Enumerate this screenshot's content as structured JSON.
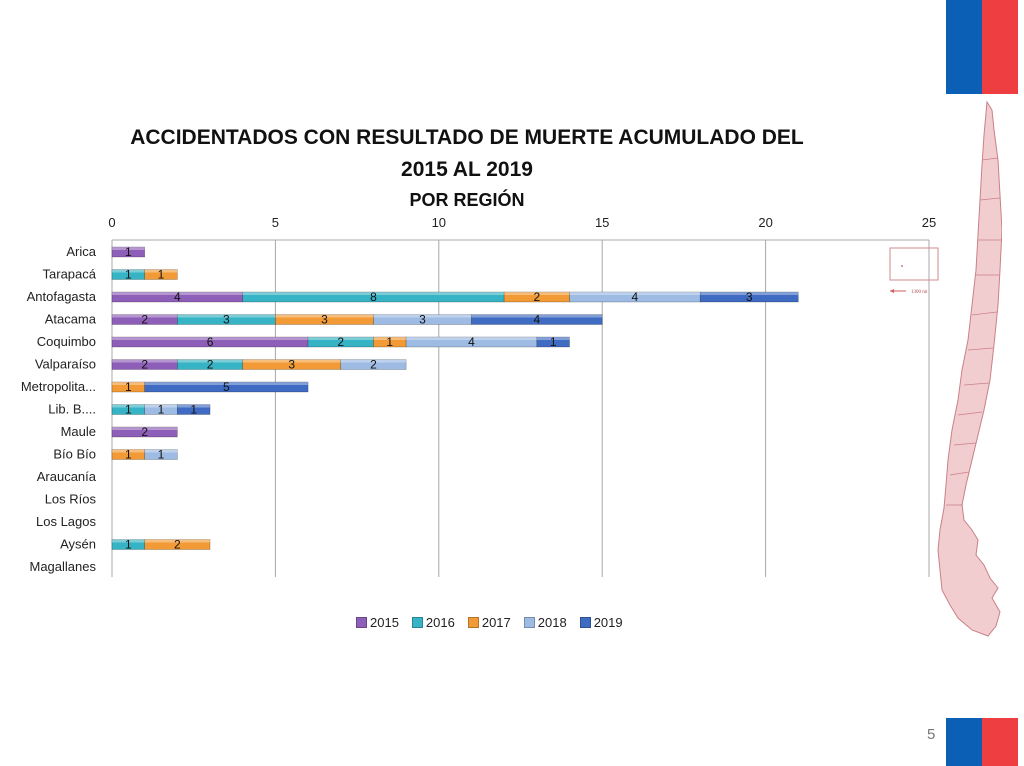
{
  "slide": {
    "title_line1": "ACCIDENTADOS CON RESULTADO DE MUERTE ACUMULADO DEL",
    "title_line2": "2015 AL 2019",
    "subtitle": "POR REGIÓN",
    "page_number": "5",
    "colors": {
      "flag_blue": "#0b5fb5",
      "flag_red": "#ee3e41",
      "map_fill": "#f2cdd0",
      "map_stroke": "#c98087"
    }
  },
  "inset_label": "1300 mi",
  "chart_data": {
    "type": "bar",
    "orientation": "horizontal",
    "stacked": true,
    "xlim": [
      0,
      25
    ],
    "x_ticks": [
      "0",
      "5",
      "10",
      "15",
      "20",
      "25"
    ],
    "grid": true,
    "legend_position": "bottom",
    "categories": [
      "Arica",
      "Tarapacá",
      "Antofagasta",
      "Atacama",
      "Coquimbo",
      "Valparaíso",
      "Metropolita...",
      "Lib. B....",
      "Maule",
      "Bío Bío",
      "Araucanía",
      "Los Ríos",
      "Los Lagos",
      "Aysén",
      "Magallanes"
    ],
    "series": [
      {
        "name": "2015",
        "color": "#8e5fb8",
        "values": [
          1,
          0,
          4,
          2,
          6,
          2,
          0,
          0,
          2,
          0,
          0,
          0,
          0,
          0,
          0
        ]
      },
      {
        "name": "2016",
        "color": "#36b3c4",
        "values": [
          0,
          1,
          8,
          3,
          2,
          2,
          0,
          1,
          0,
          0,
          0,
          0,
          0,
          1,
          0
        ]
      },
      {
        "name": "2017",
        "color": "#f29a35",
        "values": [
          0,
          1,
          2,
          3,
          1,
          3,
          1,
          0,
          0,
          1,
          0,
          0,
          0,
          2,
          0
        ]
      },
      {
        "name": "2018",
        "color": "#9dbbe3",
        "values": [
          0,
          0,
          4,
          3,
          4,
          2,
          0,
          1,
          0,
          1,
          0,
          0,
          0,
          0,
          0
        ]
      },
      {
        "name": "2019",
        "color": "#3f6cc2",
        "values": [
          0,
          0,
          3,
          4,
          1,
          0,
          5,
          1,
          0,
          0,
          0,
          0,
          0,
          0,
          0
        ]
      }
    ]
  }
}
